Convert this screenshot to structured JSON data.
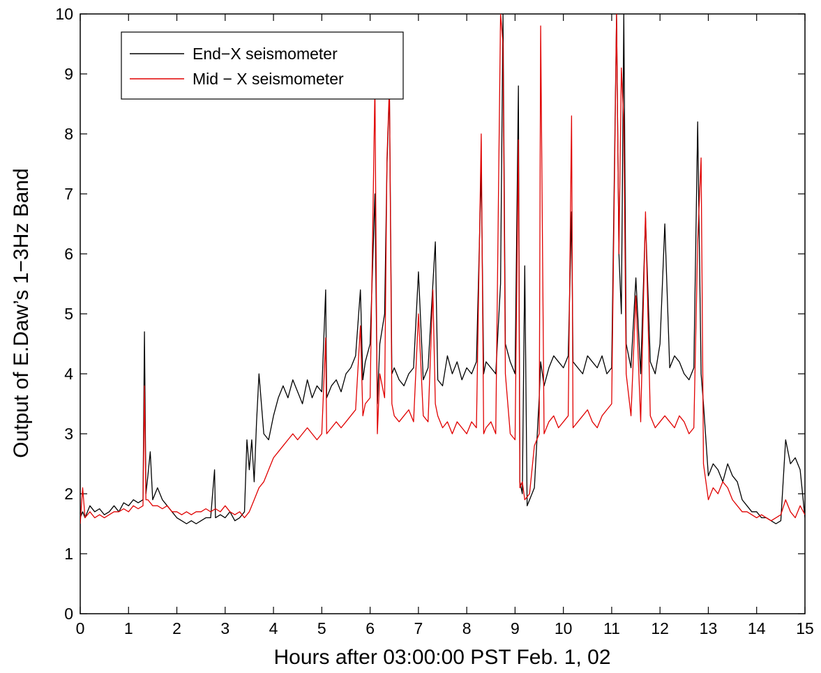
{
  "chart_data": {
    "type": "line",
    "title": "",
    "xlabel": "Hours after 03:00:00 PST Feb. 1, 02",
    "ylabel": "Output of E.Daw’s 1−3Hz Band",
    "xlim": [
      0,
      15
    ],
    "ylim": [
      0,
      10
    ],
    "xticks": [
      0,
      1,
      2,
      3,
      4,
      5,
      6,
      7,
      8,
      9,
      10,
      11,
      12,
      13,
      14,
      15
    ],
    "yticks": [
      0,
      1,
      2,
      3,
      4,
      5,
      6,
      7,
      8,
      9,
      10
    ],
    "grid": false,
    "legend_position": "top-left",
    "series": [
      {
        "name": "End−X seismometer",
        "color": "#000000",
        "x": [
          0,
          0.05,
          0.1,
          0.2,
          0.3,
          0.4,
          0.5,
          0.6,
          0.7,
          0.8,
          0.9,
          1.0,
          1.1,
          1.2,
          1.3,
          1.33,
          1.36,
          1.4,
          1.45,
          1.5,
          1.6,
          1.7,
          1.8,
          1.9,
          2.0,
          2.1,
          2.2,
          2.3,
          2.4,
          2.5,
          2.6,
          2.7,
          2.78,
          2.8,
          2.9,
          3.0,
          3.1,
          3.2,
          3.3,
          3.4,
          3.45,
          3.5,
          3.55,
          3.6,
          3.65,
          3.7,
          3.8,
          3.9,
          4.0,
          4.1,
          4.2,
          4.3,
          4.4,
          4.5,
          4.6,
          4.7,
          4.8,
          4.9,
          5.0,
          5.08,
          5.1,
          5.2,
          5.3,
          5.4,
          5.5,
          5.6,
          5.7,
          5.8,
          5.85,
          5.9,
          6.0,
          6.1,
          6.15,
          6.2,
          6.3,
          6.35,
          6.4,
          6.45,
          6.5,
          6.6,
          6.7,
          6.8,
          6.9,
          7.0,
          7.1,
          7.2,
          7.3,
          7.35,
          7.4,
          7.5,
          7.6,
          7.7,
          7.8,
          7.9,
          8.0,
          8.1,
          8.2,
          8.3,
          8.35,
          8.4,
          8.5,
          8.6,
          8.7,
          8.75,
          8.8,
          8.9,
          9.0,
          9.07,
          9.1,
          9.15,
          9.2,
          9.25,
          9.3,
          9.4,
          9.5,
          9.53,
          9.6,
          9.7,
          9.8,
          9.9,
          10.0,
          10.1,
          10.17,
          10.2,
          10.3,
          10.4,
          10.5,
          10.6,
          10.7,
          10.8,
          10.9,
          11.0,
          11.1,
          11.15,
          11.2,
          11.25,
          11.3,
          11.4,
          11.5,
          11.6,
          11.7,
          11.8,
          11.9,
          12.0,
          12.1,
          12.2,
          12.3,
          12.4,
          12.5,
          12.6,
          12.7,
          12.78,
          12.85,
          12.9,
          13.0,
          13.1,
          13.2,
          13.3,
          13.4,
          13.5,
          13.6,
          13.7,
          13.8,
          13.9,
          14.0,
          14.1,
          14.2,
          14.3,
          14.4,
          14.5,
          14.6,
          14.7,
          14.8,
          14.9,
          15.0
        ],
        "values": [
          1.6,
          1.7,
          1.6,
          1.8,
          1.7,
          1.75,
          1.65,
          1.7,
          1.8,
          1.7,
          1.85,
          1.8,
          1.9,
          1.85,
          1.9,
          4.7,
          2.0,
          2.3,
          2.7,
          1.9,
          2.1,
          1.9,
          1.8,
          1.7,
          1.6,
          1.55,
          1.5,
          1.55,
          1.5,
          1.55,
          1.6,
          1.6,
          2.4,
          1.6,
          1.65,
          1.6,
          1.7,
          1.55,
          1.6,
          1.7,
          2.9,
          2.4,
          2.9,
          2.2,
          3.2,
          4.0,
          3.0,
          2.9,
          3.3,
          3.6,
          3.8,
          3.6,
          3.9,
          3.7,
          3.5,
          3.9,
          3.6,
          3.8,
          3.7,
          5.4,
          3.6,
          3.8,
          3.9,
          3.7,
          4.0,
          4.1,
          4.3,
          5.4,
          3.9,
          4.2,
          4.5,
          7.0,
          3.5,
          4.5,
          5.0,
          7.5,
          8.7,
          4.0,
          4.1,
          3.9,
          3.8,
          4.0,
          4.1,
          5.7,
          3.9,
          4.1,
          5.5,
          6.2,
          3.9,
          3.8,
          4.3,
          4.0,
          4.2,
          3.9,
          4.1,
          4.0,
          4.2,
          7.4,
          4.0,
          4.2,
          4.1,
          4.0,
          5.5,
          10.0,
          4.5,
          4.2,
          4.0,
          8.8,
          2.2,
          2.0,
          5.8,
          1.8,
          1.9,
          2.1,
          3.6,
          4.2,
          3.8,
          4.1,
          4.3,
          4.2,
          4.1,
          4.3,
          6.7,
          4.2,
          4.1,
          4.0,
          4.3,
          4.2,
          4.1,
          4.3,
          4.0,
          4.1,
          10.0,
          6.0,
          5.0,
          10.0,
          4.5,
          4.1,
          5.6,
          4.0,
          6.6,
          4.2,
          4.0,
          4.5,
          6.5,
          4.1,
          4.3,
          4.2,
          4.0,
          3.9,
          4.1,
          8.2,
          4.0,
          3.5,
          2.3,
          2.5,
          2.4,
          2.2,
          2.5,
          2.3,
          2.2,
          1.9,
          1.8,
          1.7,
          1.7,
          1.6,
          1.6,
          1.55,
          1.5,
          1.55,
          2.9,
          2.5,
          2.6,
          2.4,
          1.6
        ]
      },
      {
        "name": "Mid − X seismometer",
        "color": "#e00000",
        "x": [
          0,
          0.05,
          0.1,
          0.2,
          0.3,
          0.4,
          0.5,
          0.6,
          0.7,
          0.8,
          0.9,
          1.0,
          1.1,
          1.2,
          1.3,
          1.33,
          1.36,
          1.4,
          1.5,
          1.6,
          1.7,
          1.8,
          1.9,
          2.0,
          2.1,
          2.2,
          2.3,
          2.4,
          2.5,
          2.6,
          2.7,
          2.8,
          2.9,
          3.0,
          3.1,
          3.2,
          3.3,
          3.4,
          3.5,
          3.6,
          3.7,
          3.8,
          3.9,
          4.0,
          4.1,
          4.2,
          4.3,
          4.4,
          4.5,
          4.6,
          4.7,
          4.8,
          4.9,
          5.0,
          5.08,
          5.1,
          5.2,
          5.3,
          5.4,
          5.5,
          5.6,
          5.7,
          5.8,
          5.85,
          5.9,
          6.0,
          6.1,
          6.15,
          6.2,
          6.3,
          6.35,
          6.4,
          6.45,
          6.5,
          6.6,
          6.7,
          6.8,
          6.9,
          7.0,
          7.1,
          7.2,
          7.3,
          7.35,
          7.4,
          7.5,
          7.6,
          7.7,
          7.8,
          7.9,
          8.0,
          8.1,
          8.2,
          8.3,
          8.35,
          8.4,
          8.5,
          8.6,
          8.7,
          8.75,
          8.8,
          8.9,
          9.0,
          9.07,
          9.1,
          9.15,
          9.2,
          9.3,
          9.4,
          9.5,
          9.53,
          9.6,
          9.7,
          9.8,
          9.9,
          10.0,
          10.1,
          10.17,
          10.2,
          10.3,
          10.4,
          10.5,
          10.6,
          10.7,
          10.8,
          10.9,
          11.0,
          11.1,
          11.15,
          11.2,
          11.25,
          11.3,
          11.4,
          11.5,
          11.6,
          11.7,
          11.8,
          11.9,
          12.0,
          12.1,
          12.2,
          12.3,
          12.4,
          12.5,
          12.6,
          12.7,
          12.78,
          12.85,
          12.9,
          13.0,
          13.1,
          13.2,
          13.3,
          13.4,
          13.5,
          13.6,
          13.7,
          13.8,
          13.9,
          14.0,
          14.1,
          14.2,
          14.3,
          14.4,
          14.5,
          14.6,
          14.7,
          14.8,
          14.9,
          15.0
        ],
        "values": [
          1.5,
          2.1,
          1.6,
          1.7,
          1.6,
          1.65,
          1.6,
          1.65,
          1.7,
          1.7,
          1.75,
          1.7,
          1.8,
          1.75,
          1.8,
          3.8,
          1.9,
          1.9,
          1.8,
          1.8,
          1.75,
          1.8,
          1.7,
          1.7,
          1.65,
          1.7,
          1.65,
          1.7,
          1.7,
          1.75,
          1.7,
          1.75,
          1.7,
          1.8,
          1.7,
          1.65,
          1.7,
          1.6,
          1.7,
          1.9,
          2.1,
          2.2,
          2.4,
          2.6,
          2.7,
          2.8,
          2.9,
          3.0,
          2.9,
          3.0,
          3.1,
          3.0,
          2.9,
          3.0,
          4.6,
          3.0,
          3.1,
          3.2,
          3.1,
          3.2,
          3.3,
          3.4,
          4.8,
          3.3,
          3.5,
          3.6,
          8.8,
          3.0,
          4.0,
          3.6,
          7.6,
          8.8,
          3.5,
          3.3,
          3.2,
          3.3,
          3.4,
          3.2,
          5.0,
          3.3,
          3.2,
          5.4,
          3.5,
          3.3,
          3.1,
          3.2,
          3.0,
          3.2,
          3.1,
          3.0,
          3.2,
          3.1,
          8.0,
          3.0,
          3.1,
          3.2,
          3.0,
          10.0,
          9.5,
          4.0,
          3.0,
          2.9,
          7.9,
          2.1,
          2.2,
          1.9,
          2.0,
          2.8,
          3.0,
          9.8,
          3.0,
          3.2,
          3.3,
          3.1,
          3.2,
          3.3,
          8.3,
          3.1,
          3.2,
          3.3,
          3.4,
          3.2,
          3.1,
          3.3,
          3.4,
          3.5,
          10.0,
          6.0,
          9.1,
          8.2,
          4.0,
          3.3,
          5.3,
          3.2,
          6.7,
          3.3,
          3.1,
          3.2,
          3.3,
          3.2,
          3.1,
          3.3,
          3.2,
          3.0,
          3.1,
          6.2,
          7.6,
          2.5,
          1.9,
          2.1,
          2.0,
          2.2,
          2.1,
          1.9,
          1.8,
          1.7,
          1.7,
          1.65,
          1.6,
          1.65,
          1.6,
          1.55,
          1.6,
          1.65,
          1.9,
          1.7,
          1.6,
          1.8,
          1.65
        ]
      }
    ]
  }
}
